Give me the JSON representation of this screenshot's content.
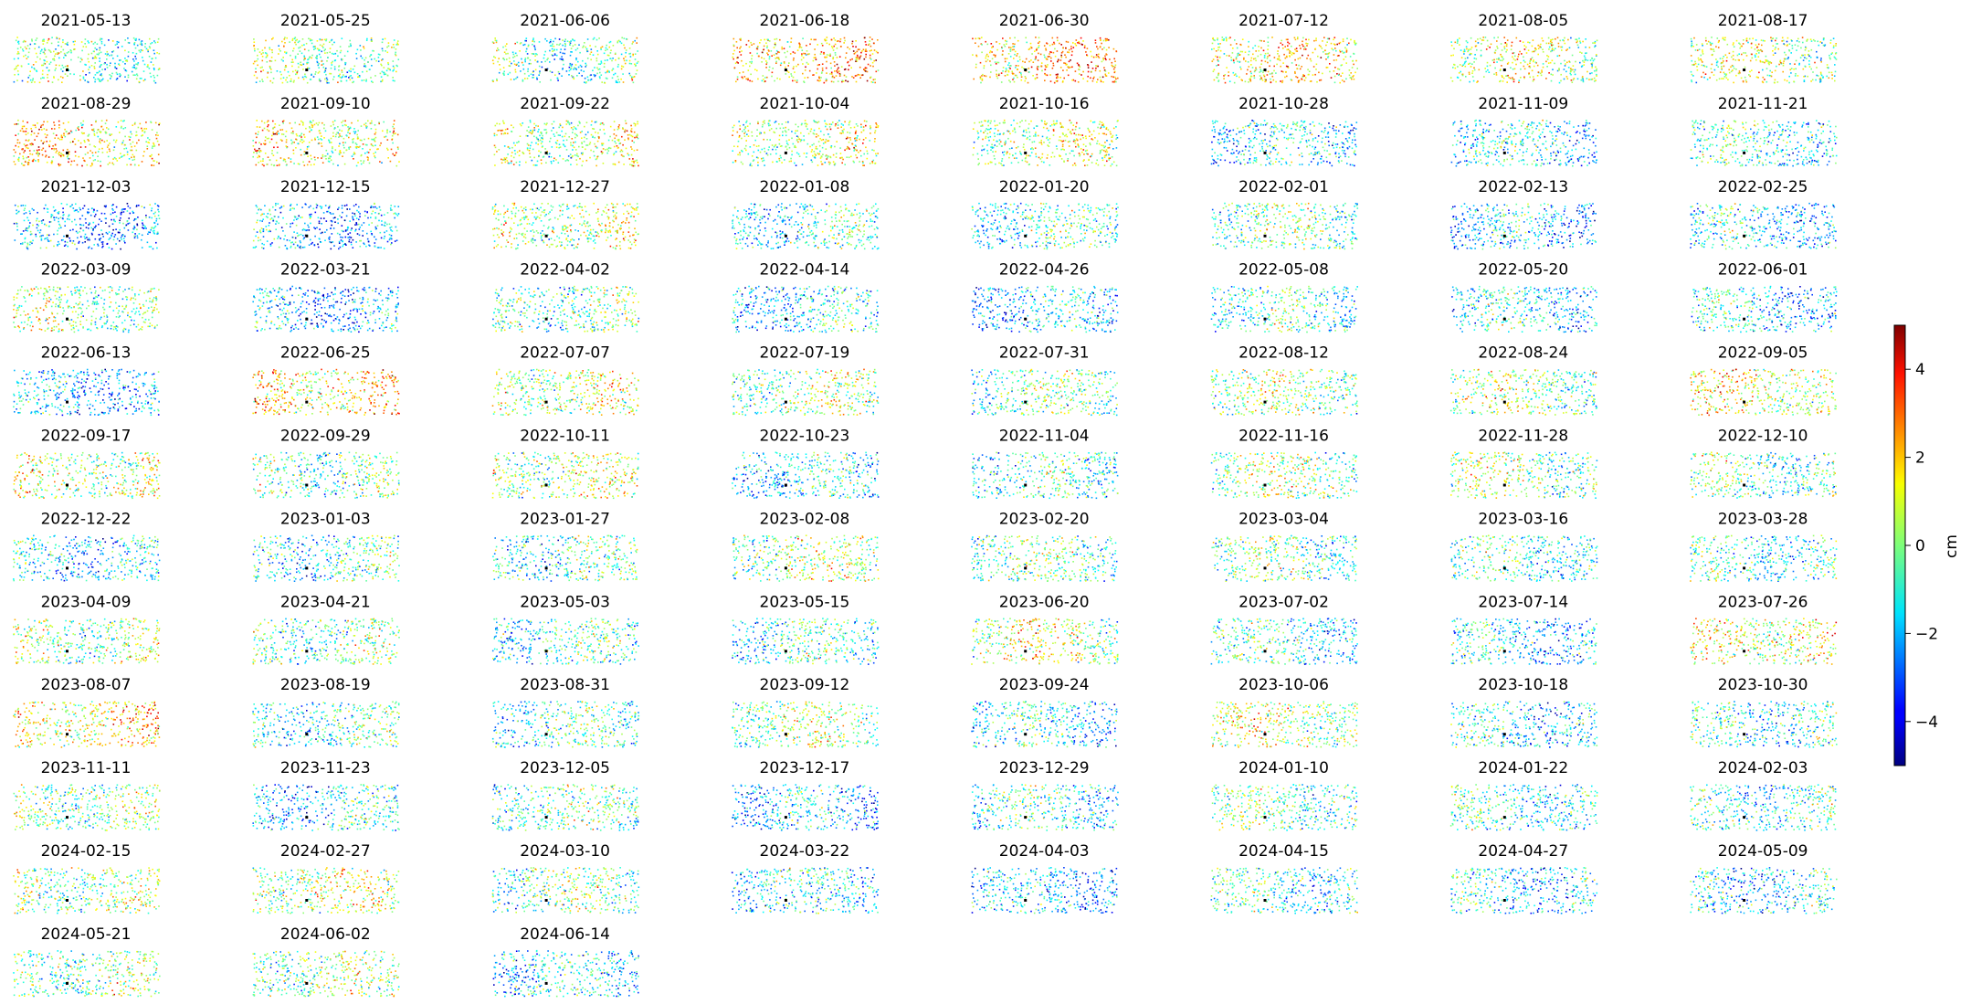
{
  "chart_data": {
    "type": "scatter",
    "subplot_titles": [
      "2021-05-13",
      "2021-05-25",
      "2021-06-06",
      "2021-06-18",
      "2021-06-30",
      "2021-07-12",
      "2021-08-05",
      "2021-08-17",
      "2021-08-29",
      "2021-09-10",
      "2021-09-22",
      "2021-10-04",
      "2021-10-16",
      "2021-10-28",
      "2021-11-09",
      "2021-11-21",
      "2021-12-03",
      "2021-12-15",
      "2021-12-27",
      "2022-01-08",
      "2022-01-20",
      "2022-02-01",
      "2022-02-13",
      "2022-02-25",
      "2022-03-09",
      "2022-03-21",
      "2022-04-02",
      "2022-04-14",
      "2022-04-26",
      "2022-05-08",
      "2022-05-20",
      "2022-06-01",
      "2022-06-13",
      "2022-06-25",
      "2022-07-07",
      "2022-07-19",
      "2022-07-31",
      "2022-08-12",
      "2022-08-24",
      "2022-09-05",
      "2022-09-17",
      "2022-09-29",
      "2022-10-11",
      "2022-10-23",
      "2022-11-04",
      "2022-11-16",
      "2022-11-28",
      "2022-12-10",
      "2022-12-22",
      "2023-01-03",
      "2023-01-27",
      "2023-02-08",
      "2023-02-20",
      "2023-03-04",
      "2023-03-16",
      "2023-03-28",
      "2023-04-09",
      "2023-04-21",
      "2023-05-03",
      "2023-05-15",
      "2023-06-20",
      "2023-07-02",
      "2023-07-14",
      "2023-07-26",
      "2023-08-07",
      "2023-08-19",
      "2023-08-31",
      "2023-09-12",
      "2023-09-24",
      "2023-10-06",
      "2023-10-18",
      "2023-10-30",
      "2023-11-11",
      "2023-11-23",
      "2023-12-05",
      "2023-12-17",
      "2023-12-29",
      "2024-01-10",
      "2024-01-22",
      "2024-02-03",
      "2024-02-15",
      "2024-02-27",
      "2024-03-10",
      "2024-03-22",
      "2024-04-03",
      "2024-04-15",
      "2024-04-27",
      "2024-05-09",
      "2024-05-21",
      "2024-06-02",
      "2024-06-14"
    ],
    "grid": {
      "columns": 8,
      "rows": 12
    },
    "panel_mean_cm": [
      -0.5,
      0,
      -0.5,
      2,
      2,
      1.5,
      0.5,
      0.5,
      1.5,
      1,
      0.5,
      0.5,
      0.5,
      -1.5,
      -1.5,
      -1,
      -2,
      -2,
      0.5,
      -1,
      -1,
      -0.5,
      -2,
      -1.5,
      0,
      -2,
      -0.5,
      -1.5,
      -2,
      -1,
      -1.5,
      -1.5,
      -2,
      1.5,
      0.5,
      0,
      -0.5,
      0,
      0,
      1,
      0.5,
      -0.5,
      0.5,
      -1.5,
      -1,
      0,
      0,
      -0.5,
      -1.5,
      -1,
      -1,
      0,
      -0.5,
      -0.5,
      -1,
      -1,
      0,
      -0.5,
      -1,
      -1,
      0.5,
      -1,
      -1.5,
      1,
      1.5,
      -1,
      -1,
      0,
      -1.5,
      0.5,
      -1.5,
      -1,
      0,
      -1.5,
      -0.5,
      -2,
      -1,
      -0.5,
      -1,
      -1,
      0,
      0.5,
      -0.5,
      -1.5,
      -2,
      -1,
      -1.5,
      -1.5,
      0,
      0,
      -1.5
    ],
    "colorbar": {
      "label": "cm",
      "colormap": "jet",
      "vmin": -5,
      "vmax": 5,
      "ticks": [
        4,
        2,
        0,
        -2,
        -4
      ],
      "tick_labels": [
        "4",
        "2",
        "0",
        "−2",
        "−4"
      ]
    },
    "axes_visible": false,
    "grid_lines": false,
    "reference_marker": "black point in each panel"
  }
}
